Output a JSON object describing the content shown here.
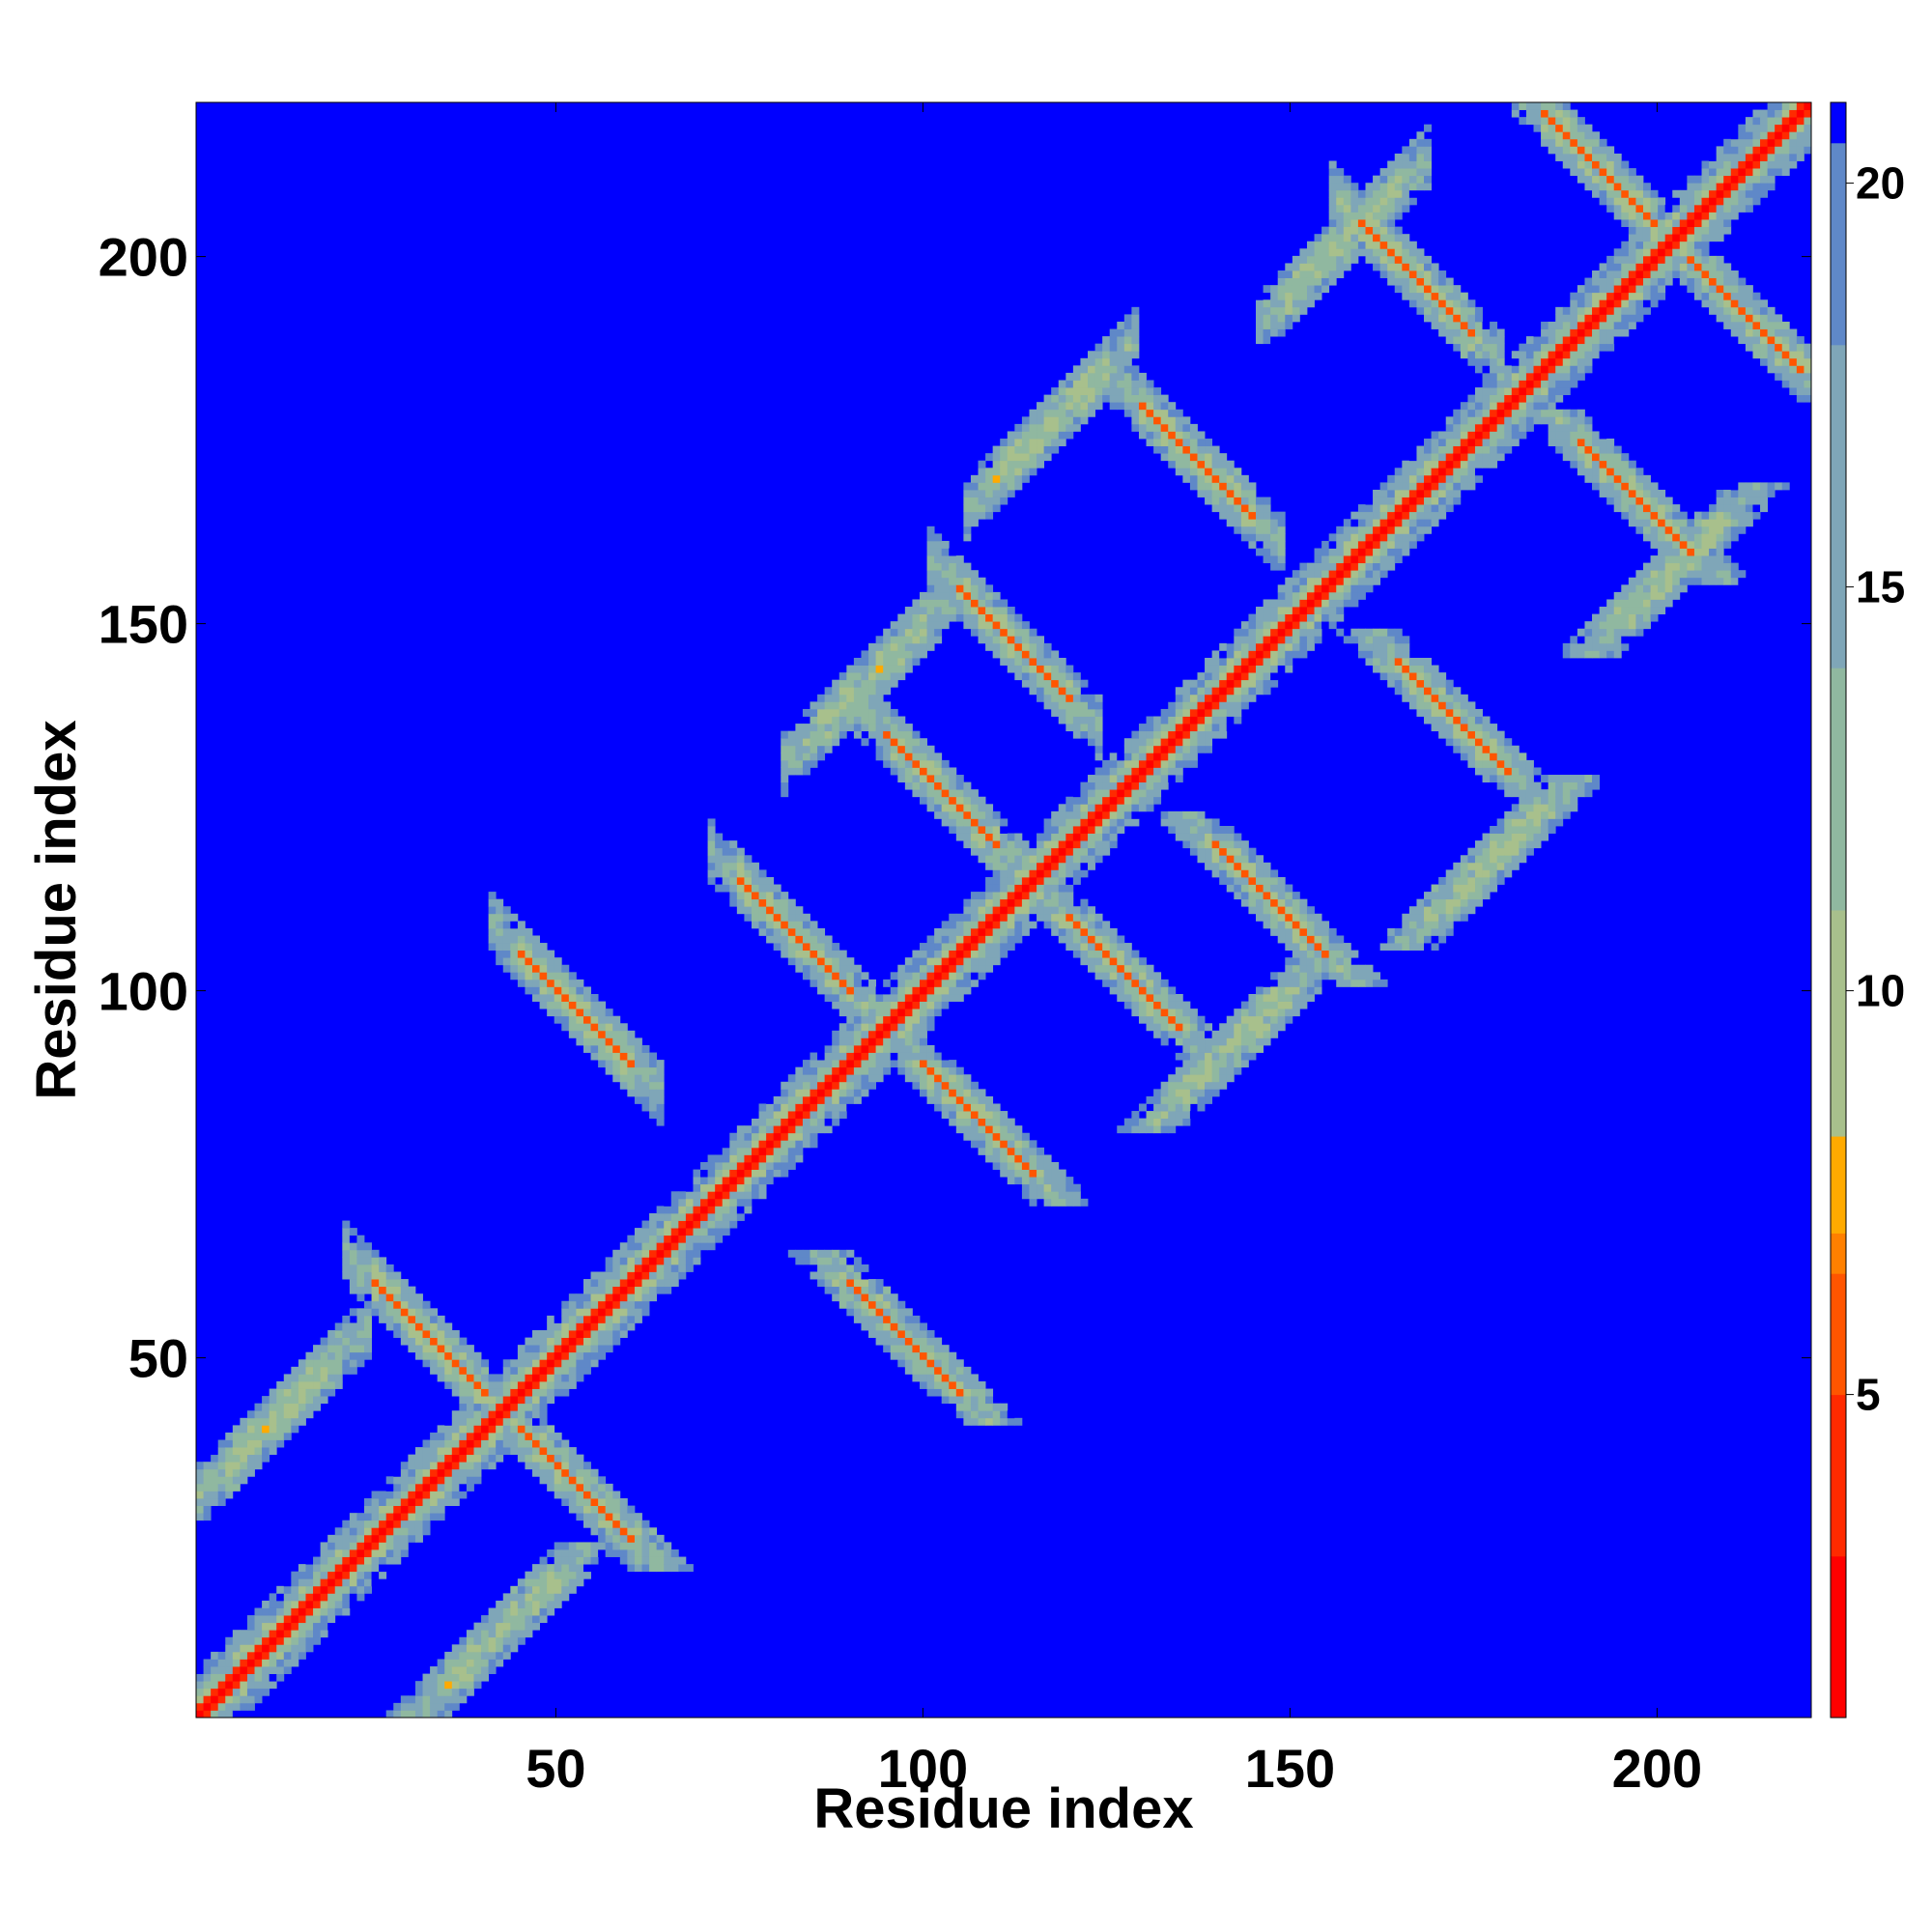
{
  "chart_data": {
    "type": "heatmap",
    "title": "",
    "xlabel": "Residue index",
    "ylabel": "Residue index",
    "n_residues": 221,
    "xlim": [
      1,
      221
    ],
    "ylim": [
      1,
      221
    ],
    "x_ticks": [
      50,
      100,
      150,
      200
    ],
    "y_ticks": [
      50,
      100,
      150,
      200
    ],
    "colorbar": {
      "range": [
        1,
        21
      ],
      "ticks": [
        5,
        10,
        15,
        20
      ],
      "colors": [
        "#ff0000",
        "#ff2a00",
        "#ff5500",
        "#ff8000",
        "#ffaa00",
        "#a8c08c",
        "#90b8a0",
        "#7fa6b8",
        "#5f88c8",
        "#0000ff"
      ],
      "boundaries": [
        1,
        3,
        5,
        6.5,
        7,
        8.2,
        11,
        14,
        18,
        20.5,
        21
      ]
    },
    "background_value": 21,
    "diagonal_value": 2,
    "structure_bands": [
      {
        "kind": "parallel",
        "i": [
          5,
          20
        ],
        "j": [
          35,
          50
        ],
        "value": 11
      },
      {
        "kind": "anti",
        "i": [
          25,
          40
        ],
        "j": [
          45,
          60
        ],
        "value": 6
      },
      {
        "kind": "anti",
        "i": [
          45,
          60
        ],
        "j": [
          90,
          105
        ],
        "value": 6
      },
      {
        "kind": "anti",
        "i": [
          75,
          90
        ],
        "j": [
          100,
          115
        ],
        "value": 6
      },
      {
        "kind": "anti",
        "i": [
          95,
          110
        ],
        "j": [
          120,
          135
        ],
        "value": 6
      },
      {
        "kind": "anti",
        "i": [
          105,
          120
        ],
        "j": [
          140,
          155
        ],
        "value": 6
      },
      {
        "kind": "anti",
        "i": [
          130,
          145
        ],
        "j": [
          165,
          180
        ],
        "value": 6
      },
      {
        "kind": "anti",
        "i": [
          160,
          175
        ],
        "j": [
          190,
          205
        ],
        "value": 6
      },
      {
        "kind": "anti",
        "i": [
          185,
          200
        ],
        "j": [
          205,
          220
        ],
        "value": 6
      },
      {
        "kind": "parallel",
        "i": [
          85,
          100
        ],
        "j": [
          135,
          150
        ],
        "value": 11
      },
      {
        "kind": "parallel",
        "i": [
          110,
          125
        ],
        "j": [
          170,
          185
        ],
        "value": 11
      },
      {
        "kind": "parallel",
        "i": [
          150,
          165
        ],
        "j": [
          195,
          210
        ],
        "value": 11
      }
    ]
  }
}
